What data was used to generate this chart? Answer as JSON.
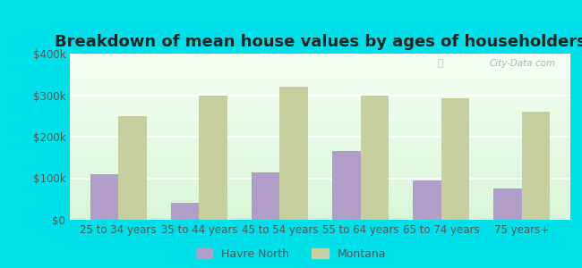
{
  "title": "Breakdown of mean house values by ages of householders",
  "categories": [
    "25 to 34 years",
    "35 to 44 years",
    "45 to 54 years",
    "55 to 64 years",
    "65 to 74 years",
    "75 years+"
  ],
  "havre_north": [
    110000,
    40000,
    115000,
    165000,
    95000,
    75000
  ],
  "montana": [
    250000,
    300000,
    320000,
    300000,
    292000,
    260000
  ],
  "havre_color": "#b09ec9",
  "montana_color": "#c8cf9e",
  "background_outer": "#00e0e8",
  "background_inner_top": "#e8f5e8",
  "background_inner_bottom": "#f5fff5",
  "ylim": [
    0,
    400000
  ],
  "yticks": [
    0,
    100000,
    200000,
    300000,
    400000
  ],
  "ytick_labels": [
    "$0",
    "$100k",
    "$200k",
    "$300k",
    "$400k"
  ],
  "legend_labels": [
    "Havre North",
    "Montana"
  ],
  "bar_width": 0.35,
  "title_fontsize": 13,
  "tick_fontsize": 8.5,
  "legend_fontsize": 9
}
